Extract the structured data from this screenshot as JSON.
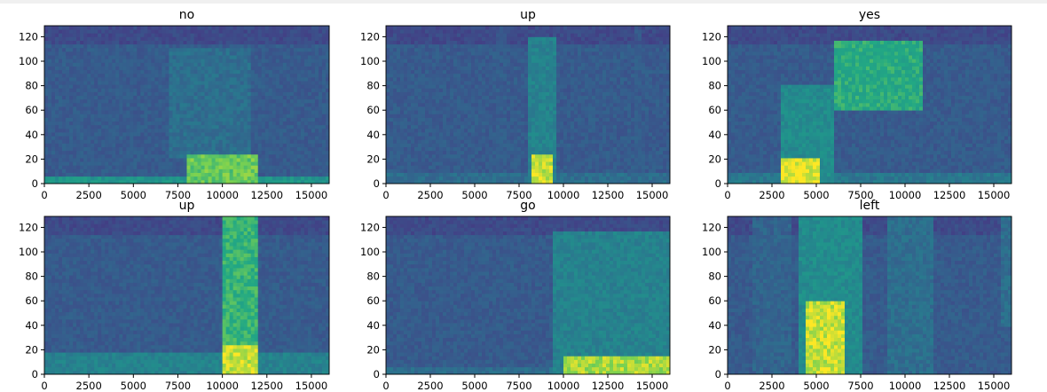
{
  "chart_data": [
    {
      "type": "heatmap",
      "title": "no",
      "xlim": [
        0,
        16000
      ],
      "ylim": [
        0,
        129
      ],
      "xticks": [
        0,
        2500,
        5000,
        7500,
        10000,
        12500,
        15000
      ],
      "yticks": [
        0,
        20,
        40,
        60,
        80,
        100,
        120
      ],
      "colormap": "viridis",
      "regions": [
        {
          "x": [
            7000,
            11500
          ],
          "y": [
            20,
            110
          ],
          "intensity": 0.45
        },
        {
          "x": [
            8000,
            12000
          ],
          "y": [
            0,
            25
          ],
          "intensity": 0.85
        },
        {
          "x": [
            0,
            16000
          ],
          "y": [
            0,
            6
          ],
          "intensity": 0.65
        }
      ]
    },
    {
      "type": "heatmap",
      "title": "up",
      "xlim": [
        0,
        16000
      ],
      "ylim": [
        0,
        129
      ],
      "xticks": [
        0,
        2500,
        5000,
        7500,
        10000,
        12500,
        15000
      ],
      "yticks": [
        0,
        20,
        40,
        60,
        80,
        100,
        120
      ],
      "colormap": "viridis",
      "regions": [
        {
          "x": [
            8000,
            9500
          ],
          "y": [
            0,
            120
          ],
          "intensity": 0.55
        },
        {
          "x": [
            8300,
            9300
          ],
          "y": [
            0,
            25
          ],
          "intensity": 0.95
        },
        {
          "x": [
            6200,
            6700
          ],
          "y": [
            0,
            129
          ],
          "intensity": 0.35
        },
        {
          "x": [
            14000,
            14400
          ],
          "y": [
            0,
            129
          ],
          "intensity": 0.35
        },
        {
          "x": [
            0,
            16000
          ],
          "y": [
            0,
            8
          ],
          "intensity": 0.45
        }
      ]
    },
    {
      "type": "heatmap",
      "title": "yes",
      "xlim": [
        0,
        16000
      ],
      "ylim": [
        0,
        129
      ],
      "xticks": [
        0,
        2500,
        5000,
        7500,
        10000,
        12500,
        15000
      ],
      "yticks": [
        0,
        20,
        40,
        60,
        80,
        100,
        120
      ],
      "colormap": "viridis",
      "regions": [
        {
          "x": [
            6000,
            11000
          ],
          "y": [
            60,
            118
          ],
          "intensity": 0.75
        },
        {
          "x": [
            3000,
            6000
          ],
          "y": [
            0,
            80
          ],
          "intensity": 0.6
        },
        {
          "x": [
            3000,
            5200
          ],
          "y": [
            0,
            20
          ],
          "intensity": 0.98
        },
        {
          "x": [
            0,
            16000
          ],
          "y": [
            0,
            10
          ],
          "intensity": 0.5
        }
      ]
    },
    {
      "type": "heatmap",
      "title": "up",
      "xlim": [
        0,
        16000
      ],
      "ylim": [
        0,
        129
      ],
      "xticks": [
        0,
        2500,
        5000,
        7500,
        10000,
        12500,
        15000
      ],
      "yticks": [
        0,
        20,
        40,
        60,
        80,
        100,
        120
      ],
      "colormap": "viridis",
      "regions": [
        {
          "x": [
            10000,
            12000
          ],
          "y": [
            0,
            129
          ],
          "intensity": 0.78
        },
        {
          "x": [
            10000,
            12000
          ],
          "y": [
            0,
            25
          ],
          "intensity": 0.95
        },
        {
          "x": [
            0,
            16000
          ],
          "y": [
            0,
            18
          ],
          "intensity": 0.55
        }
      ]
    },
    {
      "type": "heatmap",
      "title": "go",
      "xlim": [
        0,
        16000
      ],
      "ylim": [
        0,
        129
      ],
      "xticks": [
        0,
        2500,
        5000,
        7500,
        10000,
        12500,
        15000
      ],
      "yticks": [
        0,
        20,
        40,
        60,
        80,
        100,
        120
      ],
      "colormap": "viridis",
      "regions": [
        {
          "x": [
            9500,
            16000
          ],
          "y": [
            0,
            118
          ],
          "intensity": 0.55
        },
        {
          "x": [
            10000,
            16000
          ],
          "y": [
            0,
            15
          ],
          "intensity": 0.92
        },
        {
          "x": [
            0,
            16000
          ],
          "y": [
            0,
            6
          ],
          "intensity": 0.45
        }
      ]
    },
    {
      "type": "heatmap",
      "title": "left",
      "xlim": [
        0,
        16000
      ],
      "ylim": [
        0,
        129
      ],
      "xticks": [
        0,
        2500,
        5000,
        7500,
        10000,
        12500,
        15000
      ],
      "yticks": [
        0,
        20,
        40,
        60,
        80,
        100,
        120
      ],
      "colormap": "viridis",
      "regions": [
        {
          "x": [
            4000,
            7500
          ],
          "y": [
            0,
            129
          ],
          "intensity": 0.6
        },
        {
          "x": [
            4500,
            6500
          ],
          "y": [
            0,
            60
          ],
          "intensity": 0.95
        },
        {
          "x": [
            1500,
            3500
          ],
          "y": [
            0,
            129
          ],
          "intensity": 0.4
        },
        {
          "x": [
            9000,
            11500
          ],
          "y": [
            0,
            129
          ],
          "intensity": 0.45
        },
        {
          "x": [
            15500,
            16000
          ],
          "y": [
            40,
            129
          ],
          "intensity": 0.45
        }
      ]
    }
  ]
}
